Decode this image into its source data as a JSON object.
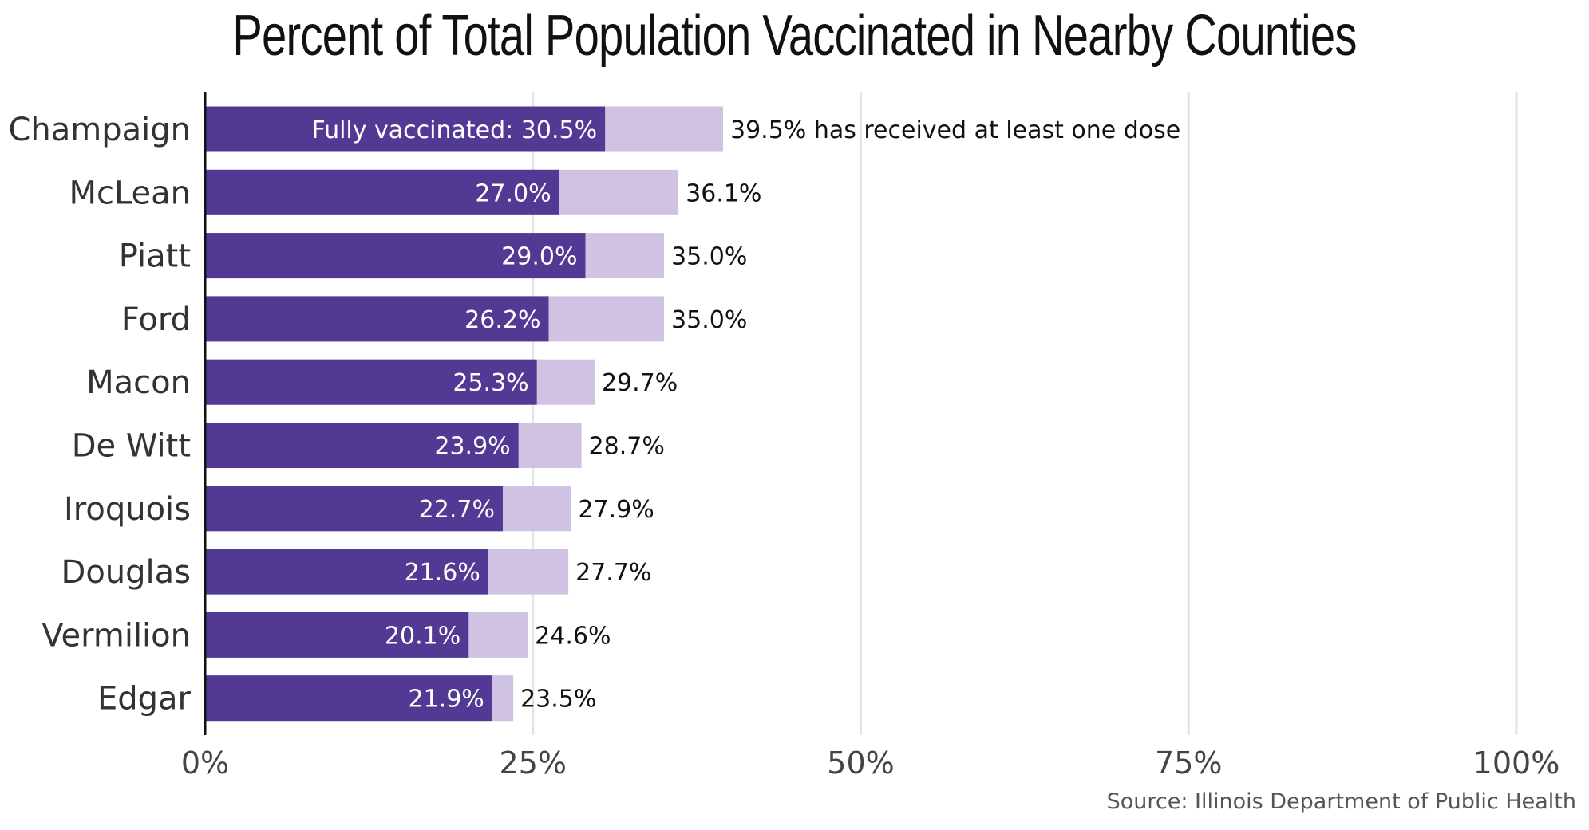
{
  "chart_data": {
    "type": "bar",
    "orientation": "horizontal",
    "title": "Percent of Total Population Vaccinated in Nearby Counties",
    "categories": [
      "Champaign",
      "McLean",
      "Piatt",
      "Ford",
      "Macon",
      "De Witt",
      "Iroquois",
      "Douglas",
      "Vermilion",
      "Edgar"
    ],
    "series": [
      {
        "values": [
          30.5,
          27.0,
          29.0,
          26.2,
          25.3,
          23.9,
          22.7,
          21.6,
          20.1,
          21.9
        ],
        "color": "#523a94"
      },
      {
        "values": [
          39.5,
          36.1,
          35.0,
          35.0,
          29.7,
          28.7,
          27.9,
          27.7,
          24.6,
          23.5
        ],
        "color": "#cfc2e3"
      }
    ],
    "inner_labels": [
      "Fully vaccinated: 30.5%",
      "27.0%",
      "29.0%",
      "26.2%",
      "25.3%",
      "23.9%",
      "22.7%",
      "21.6%",
      "20.1%",
      "21.9%"
    ],
    "outer_labels": [
      "39.5% has received at least one dose",
      "36.1%",
      "35.0%",
      "35.0%",
      "29.7%",
      "28.7%",
      "27.9%",
      "27.7%",
      "24.6%",
      "23.5%"
    ],
    "xlim": [
      0,
      100
    ],
    "xticks": [
      0,
      25,
      50,
      75,
      100
    ],
    "xtick_labels": [
      "0%",
      "25%",
      "50%",
      "75%",
      "100%"
    ],
    "grid": true,
    "source": "Source: Illinois Department of Public Health"
  }
}
